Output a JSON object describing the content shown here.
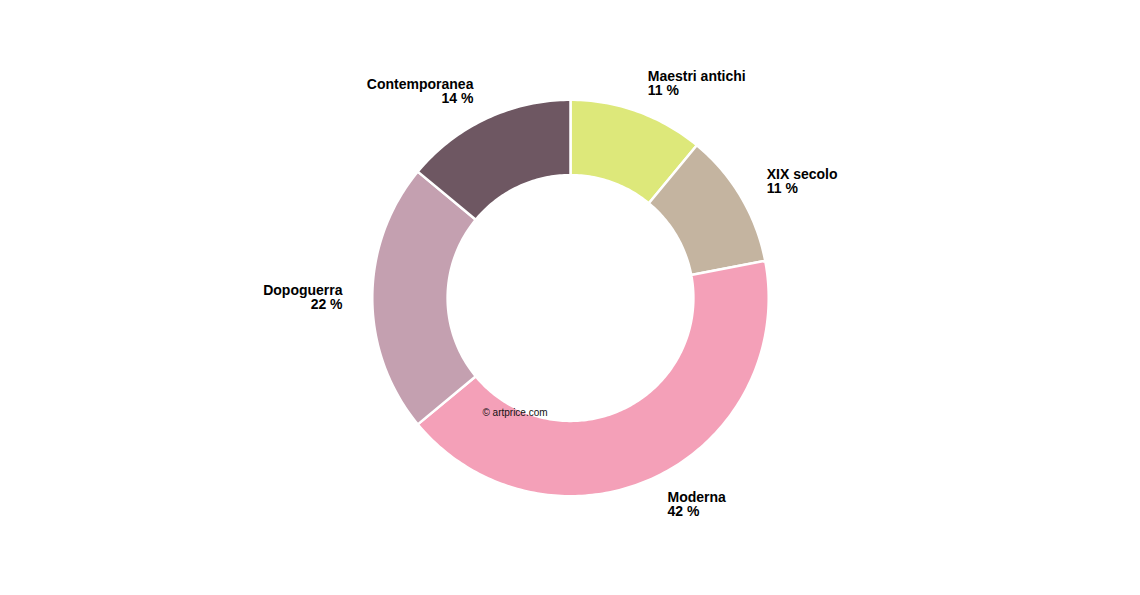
{
  "chart_data": {
    "type": "donut",
    "categories": [
      "Maestri antichi",
      "XIX secolo",
      "Moderna",
      "Dopoguerra",
      "Contemporanea"
    ],
    "values": [
      11,
      11,
      42,
      22,
      14
    ],
    "value_labels": [
      "11 %",
      "11 %",
      "42 %",
      "22 %",
      "14 %"
    ],
    "colors": [
      "#dde87a",
      "#c4b4a0",
      "#f4a0b8",
      "#c4a0b0",
      "#6e5762"
    ],
    "data_labels": true,
    "annotations": [
      "© artprice.com"
    ]
  }
}
